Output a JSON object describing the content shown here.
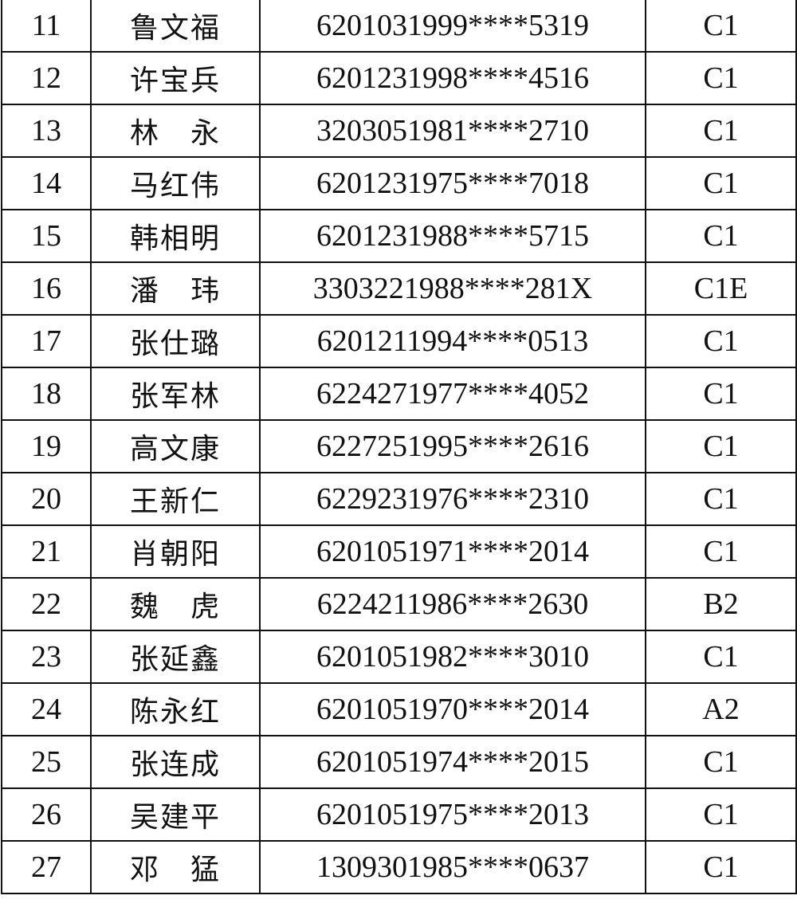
{
  "rows": [
    {
      "no": "11",
      "name": "鲁文福",
      "id": "6201031999****5319",
      "class": "C1"
    },
    {
      "no": "12",
      "name": "许宝兵",
      "id": "6201231998****4516",
      "class": "C1"
    },
    {
      "no": "13",
      "name": "林　永",
      "id": "3203051981****2710",
      "class": "C1"
    },
    {
      "no": "14",
      "name": "马红伟",
      "id": "6201231975****7018",
      "class": "C1"
    },
    {
      "no": "15",
      "name": "韩相明",
      "id": "6201231988****5715",
      "class": "C1"
    },
    {
      "no": "16",
      "name": "潘　玮",
      "id": "3303221988****281X",
      "class": "C1E"
    },
    {
      "no": "17",
      "name": "张仕璐",
      "id": "6201211994****0513",
      "class": "C1"
    },
    {
      "no": "18",
      "name": "张军林",
      "id": "6224271977****4052",
      "class": "C1"
    },
    {
      "no": "19",
      "name": "高文康",
      "id": "6227251995****2616",
      "class": "C1"
    },
    {
      "no": "20",
      "name": "王新仁",
      "id": "6229231976****2310",
      "class": "C1"
    },
    {
      "no": "21",
      "name": "肖朝阳",
      "id": "6201051971****2014",
      "class": "C1"
    },
    {
      "no": "22",
      "name": "魏　虎",
      "id": "6224211986****2630",
      "class": "B2"
    },
    {
      "no": "23",
      "name": "张延鑫",
      "id": "6201051982****3010",
      "class": "C1"
    },
    {
      "no": "24",
      "name": "陈永红",
      "id": "6201051970****2014",
      "class": "A2"
    },
    {
      "no": "25",
      "name": "张连成",
      "id": "6201051974****2015",
      "class": "C1"
    },
    {
      "no": "26",
      "name": "吴建平",
      "id": "6201051975****2013",
      "class": "C1"
    },
    {
      "no": "27",
      "name": "邓　猛",
      "id": "1309301985****0637",
      "class": "C1"
    }
  ]
}
